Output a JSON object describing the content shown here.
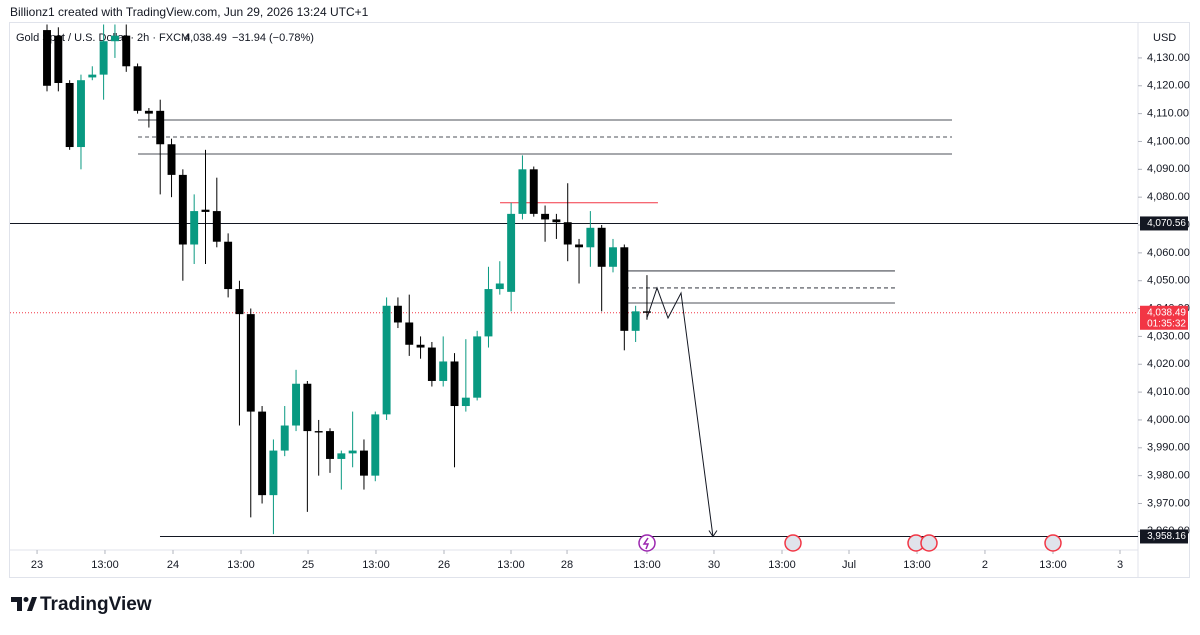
{
  "header": {
    "attribution": "Billionz1 created with TradingView.com, Jun 29, 2026 13:24 UTC+1",
    "brand": "TradingView"
  },
  "chart_data": {
    "type": "candlestick",
    "symbol": "Gold Spot / U.S. Dollar · 2h · FXCM",
    "price": "4,038.49",
    "change": "−31.94 (−0.78%)",
    "currency": "USD",
    "up_color": "#089981",
    "down_color": "#000000",
    "candles": {
      "open": [
        4140,
        4138,
        4121,
        4098,
        4123,
        4124,
        4136,
        4138,
        4127,
        4111,
        4111,
        4099,
        4088,
        4063,
        4075.5,
        4075,
        4064,
        4047,
        4038,
        4003,
        3973,
        3989,
        3998,
        4013,
        3996,
        3996,
        3986,
        3988,
        3989,
        3980,
        4002,
        4041,
        4035,
        4027,
        4026,
        4014,
        4021,
        4005,
        4008,
        4030,
        4047,
        4046,
        4074,
        4090,
        4074,
        4072,
        4071,
        4063,
        4062,
        4069,
        4055,
        4062,
        4032,
        4039
      ],
      "high": [
        4142,
        4141,
        4122,
        4124,
        4127,
        4142,
        4142,
        4142,
        4128,
        4112,
        4115,
        4101,
        4090,
        4081,
        4097,
        4087,
        4067,
        4050,
        4040,
        4005,
        3993,
        4005,
        4018,
        4014,
        4000,
        3997,
        3989,
        4003,
        3993,
        4003,
        4044,
        4044,
        4045,
        4030,
        4028,
        4030,
        4024,
        4029,
        4032,
        4055,
        4057,
        4078,
        4095,
        4091,
        4077,
        4074,
        4085,
        4065,
        4075,
        4070,
        4065,
        4063,
        4041,
        4052
      ],
      "low": [
        4118,
        4118,
        4097,
        4090,
        4122,
        4115,
        4130,
        4125,
        4110,
        4105,
        4081,
        4080,
        4050,
        4056,
        4056,
        4062,
        4044,
        3998,
        3965,
        3970,
        3959,
        3987,
        3996,
        3967,
        3980,
        3981,
        3975,
        3983,
        3975,
        3978,
        4000,
        4033,
        4023,
        4022,
        4012,
        4012,
        3983,
        4003,
        4007,
        4026,
        4045,
        4039,
        4072,
        4073,
        4064,
        4065,
        4057,
        4049,
        4055,
        4039,
        4053,
        4025,
        4028,
        4036
      ],
      "close": [
        4120,
        4121,
        4098,
        4122,
        4124,
        4136,
        4138,
        4127,
        4111,
        4110,
        4099,
        4088,
        4063,
        4075,
        4074.7,
        4064,
        4047,
        4038,
        4003,
        3973,
        3989,
        3998,
        4013,
        3996,
        3995.5,
        3986,
        3988,
        3989,
        3980,
        4002,
        4041,
        4035,
        4027,
        4026,
        4014,
        4021,
        4005,
        4008,
        4030,
        4047,
        4049,
        4074,
        4090,
        4074,
        4072,
        4071,
        4063,
        4062,
        4069,
        4055,
        4062,
        4032,
        4039,
        4038.49
      ]
    },
    "xlim": [
      -3.27,
      96.38
    ],
    "xticks": [
      {
        "value": -0.88,
        "label": "23"
      },
      {
        "value": 5.12,
        "label": "13:00"
      },
      {
        "value": 11.13,
        "label": "24"
      },
      {
        "value": 17.14,
        "label": "13:00"
      },
      {
        "value": 23.06,
        "label": "25"
      },
      {
        "value": 29.06,
        "label": "13:00"
      },
      {
        "value": 35.07,
        "label": "26"
      },
      {
        "value": 40.99,
        "label": "13:00"
      },
      {
        "value": 45.94,
        "label": "28"
      },
      {
        "value": 53,
        "label": "13:00"
      },
      {
        "value": 58.92,
        "label": "30"
      },
      {
        "value": 64.93,
        "label": "13:00"
      },
      {
        "value": 70.85,
        "label": "Jul"
      },
      {
        "value": 76.86,
        "label": "13:00"
      },
      {
        "value": 82.86,
        "label": "2"
      },
      {
        "value": 88.87,
        "label": "13:00"
      },
      {
        "value": 94.79,
        "label": "3"
      }
    ],
    "ylim": [
      3953.3,
      4142.9
    ],
    "yticks": [
      {
        "value": 3960,
        "label": "3,960.00"
      },
      {
        "value": 3970,
        "label": "3,970.00"
      },
      {
        "value": 3980,
        "label": "3,980.00"
      },
      {
        "value": 3990,
        "label": "3,990.00"
      },
      {
        "value": 4000,
        "label": "4,000.00"
      },
      {
        "value": 4010,
        "label": "4,010.00"
      },
      {
        "value": 4020,
        "label": "4,020.00"
      },
      {
        "value": 4030,
        "label": "4,030.00"
      },
      {
        "value": 4040,
        "label": "4,040.00"
      },
      {
        "value": 4050,
        "label": "4,050.00"
      },
      {
        "value": 4060,
        "label": "4,060.00"
      },
      {
        "value": 4070,
        "label": "4,070.00"
      },
      {
        "value": 4080,
        "label": "4,080.00"
      },
      {
        "value": 4090,
        "label": "4,090.00"
      },
      {
        "value": 4100,
        "label": "4,100.00"
      },
      {
        "value": 4110,
        "label": "4,110.00"
      },
      {
        "value": 4120,
        "label": "4,120.00"
      },
      {
        "value": 4130,
        "label": "4,130.00"
      }
    ],
    "price_lines": {
      "values": [
        4070.56,
        3958.16
      ],
      "value_labels": [
        "4,070.56",
        "3,958.16"
      ],
      "start": [
        null,
        9.98
      ]
    },
    "zones": [
      {
        "x": [
          8.04,
          79.95
        ],
        "top": 4107.7,
        "mid": 4101.6,
        "bottom": 4095.5
      },
      {
        "x": [
          51.06,
          74.91
        ],
        "top": 4053.5,
        "mid": 4047.4,
        "bottom": 4042
      }
    ],
    "red_line": {
      "x": [
        40.02,
        53.97
      ],
      "value": 4078,
      "color": "#f23645"
    },
    "projection": {
      "x": [
        53,
        53.89,
        54.86,
        56.01,
        58.83
      ],
      "values": [
        4036.6,
        4047.4,
        4036.6,
        4045.6,
        3958.16
      ]
    },
    "last_price": {
      "value": 4038.49,
      "value_label": "4,038.49",
      "countdown": "01:35:32",
      "color": "#f23645"
    }
  }
}
